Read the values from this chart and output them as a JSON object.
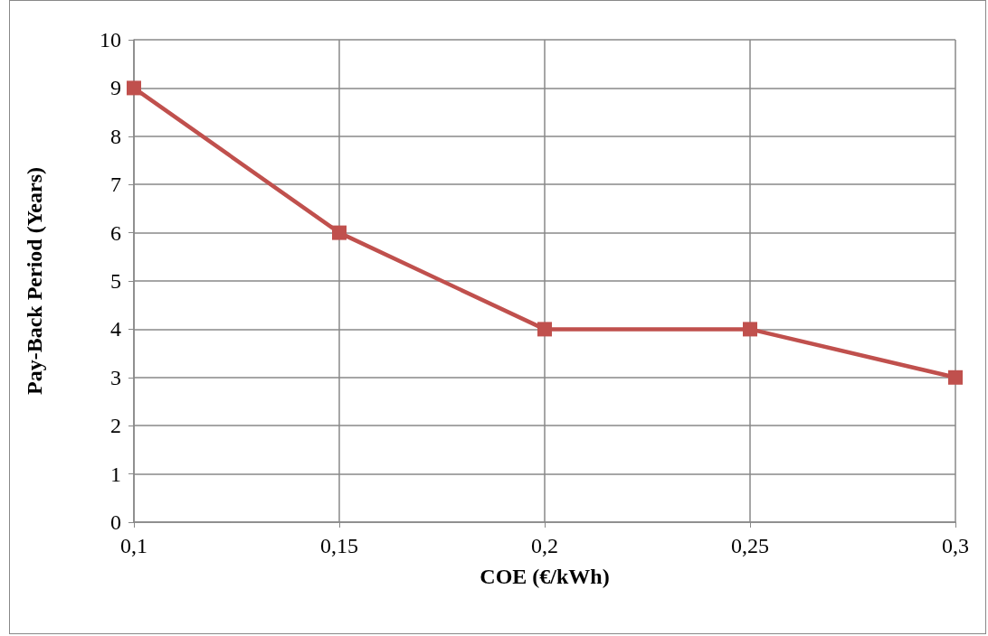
{
  "chart_data": {
    "type": "line",
    "xlabel": "COE (€/kWh)",
    "ylabel": "Pay-Back Period (Years)",
    "categories": [
      "0,1",
      "0,15",
      "0,2",
      "0,25",
      "0,3"
    ],
    "series": [
      {
        "color": "#c0504d",
        "values": [
          9,
          6,
          4,
          4,
          3
        ]
      }
    ],
    "ylim": [
      0,
      10
    ],
    "yticks": [
      0,
      1,
      2,
      3,
      4,
      5,
      6,
      7,
      8,
      9,
      10
    ],
    "grid": true,
    "marker": "square",
    "line_style": "solid"
  }
}
